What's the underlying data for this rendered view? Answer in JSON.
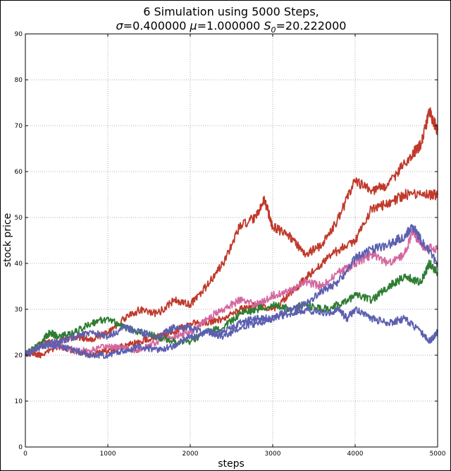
{
  "chart_data": {
    "type": "line",
    "title": "6 Simulation using 5000 Steps,",
    "subtitle_parts": {
      "sigma_symbol": "σ",
      "sigma_value": "=0.400000",
      "mu_symbol": "μ",
      "mu_value": "=1.000000",
      "s_symbol": "S",
      "s_subscript": "0",
      "s_value": "=20.222000"
    },
    "xlabel": "steps",
    "ylabel": "stock price",
    "xlim": [
      0,
      5000
    ],
    "ylim": [
      0,
      90
    ],
    "xticks": [
      0,
      1000,
      2000,
      3000,
      4000,
      5000
    ],
    "yticks": [
      0,
      10,
      20,
      30,
      40,
      50,
      60,
      70,
      80,
      90
    ],
    "grid": true,
    "series": [
      {
        "color": "#c0392b",
        "x": [
          0,
          200,
          400,
          600,
          800,
          1000,
          1200,
          1400,
          1600,
          1800,
          2000,
          2200,
          2400,
          2600,
          2800,
          2900,
          3000,
          3200,
          3400,
          3600,
          3800,
          4000,
          4200,
          4400,
          4600,
          4800,
          4900,
          5000
        ],
        "y": [
          20.2,
          22.5,
          23,
          24,
          23.5,
          25,
          28,
          30,
          29,
          32,
          31,
          35,
          40,
          48,
          50,
          54,
          48,
          46,
          42,
          44,
          50,
          58,
          56,
          57,
          62,
          66,
          73,
          69
        ]
      },
      {
        "color": "#c0392b",
        "x": [
          0,
          100,
          200,
          400,
          600,
          800,
          1000,
          1200,
          1400,
          1600,
          1800,
          2000,
          2200,
          2400,
          2600,
          2800,
          3000,
          3200,
          3400,
          3600,
          3800,
          4000,
          4200,
          4400,
          4600,
          4800,
          5000
        ],
        "y": [
          20.2,
          20.5,
          20,
          22,
          21,
          20,
          21,
          22,
          23,
          24,
          25,
          27,
          27,
          28,
          30,
          31,
          30,
          33,
          37,
          40,
          43,
          45,
          52,
          53,
          55,
          55,
          55
        ]
      },
      {
        "color": "#d4679f",
        "x": [
          0,
          200,
          400,
          600,
          800,
          1000,
          1200,
          1400,
          1600,
          1800,
          2000,
          2200,
          2400,
          2600,
          2800,
          3000,
          3200,
          3400,
          3600,
          3800,
          4000,
          4200,
          4400,
          4600,
          4700,
          4800,
          5000
        ],
        "y": [
          20.2,
          22.5,
          22,
          21,
          21,
          22,
          21.5,
          21,
          23,
          24,
          25,
          28,
          30,
          32,
          31,
          33,
          34,
          36,
          35,
          38,
          40,
          42,
          40,
          42,
          47,
          44,
          43
        ]
      },
      {
        "color": "#2e7d32",
        "x": [
          0,
          200,
          300,
          400,
          600,
          800,
          1000,
          1200,
          1400,
          1600,
          1800,
          2000,
          2200,
          2400,
          2600,
          2800,
          3000,
          3200,
          3400,
          3600,
          3800,
          4000,
          4200,
          4400,
          4600,
          4800,
          4900,
          5000
        ],
        "y": [
          20.2,
          23,
          25,
          24,
          25,
          27,
          28,
          26,
          25,
          24,
          23,
          23,
          25,
          26,
          29,
          30,
          31,
          30,
          31,
          30,
          31,
          33,
          32,
          35,
          37,
          36,
          40,
          38
        ]
      },
      {
        "color": "#5c5fb0",
        "x": [
          0,
          200,
          400,
          600,
          800,
          1000,
          1200,
          1400,
          1600,
          1800,
          2000,
          2200,
          2400,
          2600,
          2800,
          3000,
          3200,
          3400,
          3600,
          3800,
          3900,
          4000,
          4200,
          4400,
          4600,
          4800,
          4900,
          5000
        ],
        "y": [
          20.2,
          22,
          23,
          24,
          25,
          24,
          26,
          25,
          24,
          26,
          26,
          25,
          25,
          27,
          28,
          28,
          29,
          30,
          29,
          30,
          28,
          30,
          28,
          27,
          28,
          25,
          23,
          25
        ]
      },
      {
        "color": "#5c5fb0",
        "x": [
          0,
          200,
          400,
          600,
          800,
          1000,
          1200,
          1400,
          1600,
          1800,
          2000,
          2200,
          2400,
          2600,
          2800,
          3000,
          3200,
          3400,
          3600,
          3800,
          4000,
          4200,
          4400,
          4600,
          4700,
          4800,
          5000
        ],
        "y": [
          20.2,
          22,
          22,
          21,
          20,
          20,
          21,
          22,
          21,
          22,
          24,
          25,
          24,
          26,
          27,
          28,
          30,
          31,
          34,
          36,
          41,
          43,
          44,
          46,
          48,
          45,
          40
        ]
      }
    ]
  }
}
